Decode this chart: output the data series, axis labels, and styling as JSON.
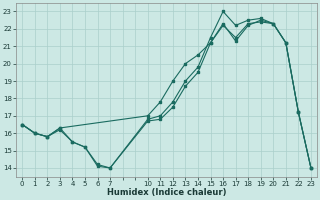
{
  "xlabel": "Humidex (Indice chaleur)",
  "bg_color": "#cce8e4",
  "grid_color": "#aacfcb",
  "line_color": "#1a6b60",
  "line1_x": [
    0,
    1,
    2,
    3,
    4,
    5,
    6,
    7,
    10,
    11,
    12,
    13,
    14,
    15,
    16,
    17,
    18,
    19,
    20,
    21,
    22,
    23
  ],
  "line1_y": [
    16.5,
    16.0,
    15.8,
    16.2,
    15.5,
    15.2,
    14.1,
    14.0,
    16.7,
    16.8,
    17.5,
    18.7,
    19.5,
    21.2,
    22.2,
    21.5,
    22.3,
    22.4,
    22.3,
    21.2,
    17.2,
    14.0
  ],
  "line2_x": [
    0,
    1,
    2,
    3,
    4,
    5,
    6,
    7,
    10,
    11,
    12,
    13,
    14,
    15,
    16,
    17,
    18,
    19,
    20,
    21,
    22,
    23
  ],
  "line2_y": [
    16.5,
    16.0,
    15.8,
    16.3,
    15.5,
    15.2,
    14.2,
    14.0,
    16.8,
    17.0,
    17.8,
    19.0,
    19.8,
    21.5,
    23.0,
    22.2,
    22.5,
    22.6,
    22.3,
    21.2,
    17.2,
    14.0
  ],
  "line3_x": [
    0,
    1,
    2,
    3,
    10,
    11,
    12,
    13,
    14,
    15,
    16,
    17,
    18,
    19,
    20,
    21,
    22,
    23
  ],
  "line3_y": [
    16.5,
    16.0,
    15.8,
    16.3,
    17.0,
    17.8,
    19.0,
    20.0,
    20.5,
    21.2,
    22.3,
    21.3,
    22.2,
    22.5,
    22.3,
    21.2,
    17.2,
    14.0
  ],
  "ylim": [
    13.5,
    23.5
  ],
  "xlim": [
    -0.5,
    23.5
  ],
  "yticks": [
    14,
    15,
    16,
    17,
    18,
    19,
    20,
    21,
    22,
    23
  ],
  "xticks": [
    0,
    1,
    2,
    3,
    4,
    5,
    6,
    7,
    8,
    9,
    10,
    11,
    12,
    13,
    14,
    15,
    16,
    17,
    18,
    19,
    20,
    21,
    22,
    23
  ],
  "xtick_labels": [
    "0",
    "1",
    "2",
    "3",
    "4",
    "5",
    "6",
    "7",
    "",
    "",
    "10",
    "11",
    "12",
    "13",
    "14",
    "15",
    "16",
    "17",
    "18",
    "19",
    "20",
    "21",
    "22",
    "23"
  ],
  "xlabel_fontsize": 6,
  "tick_fontsize": 5,
  "ylabel_fontsize": 5.5
}
